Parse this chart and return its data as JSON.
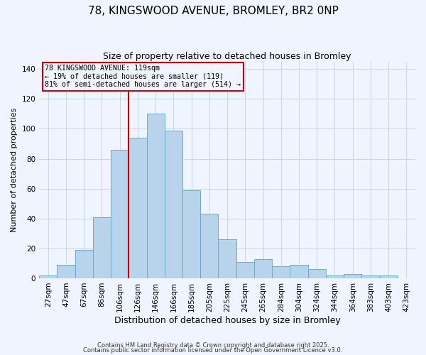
{
  "title": "78, KINGSWOOD AVENUE, BROMLEY, BR2 0NP",
  "subtitle": "Size of property relative to detached houses in Bromley",
  "xlabel": "Distribution of detached houses by size in Bromley",
  "ylabel": "Number of detached properties",
  "bar_labels": [
    "27sqm",
    "47sqm",
    "67sqm",
    "86sqm",
    "106sqm",
    "126sqm",
    "146sqm",
    "166sqm",
    "185sqm",
    "205sqm",
    "225sqm",
    "245sqm",
    "265sqm",
    "284sqm",
    "304sqm",
    "324sqm",
    "344sqm",
    "364sqm",
    "383sqm",
    "403sqm",
    "423sqm"
  ],
  "bar_heights": [
    2,
    9,
    19,
    41,
    86,
    94,
    110,
    99,
    59,
    43,
    26,
    11,
    13,
    8,
    9,
    6,
    2,
    3,
    2,
    2,
    0
  ],
  "bar_color": "#b8d4ea",
  "bar_edge_color": "#6aaad4",
  "ylim": [
    0,
    145
  ],
  "yticks": [
    0,
    20,
    40,
    60,
    80,
    100,
    120,
    140
  ],
  "vline_x": 4.5,
  "vline_color": "#cc0000",
  "annotation_line1": "78 KINGSWOOD AVENUE: 119sqm",
  "annotation_line2": "← 19% of detached houses are smaller (119)",
  "annotation_line3": "81% of semi-detached houses are larger (514) →",
  "annotation_box_color": "#cc0000",
  "footer_line1": "Contains HM Land Registry data © Crown copyright and database right 2025.",
  "footer_line2": "Contains public sector information licensed under the Open Government Licence v3.0.",
  "bg_color": "#f0f4ff",
  "grid_color": "#c8d4e8",
  "title_fontsize": 11,
  "subtitle_fontsize": 9,
  "xlabel_fontsize": 9,
  "ylabel_fontsize": 8,
  "tick_fontsize": 7.5,
  "footer_fontsize": 6
}
